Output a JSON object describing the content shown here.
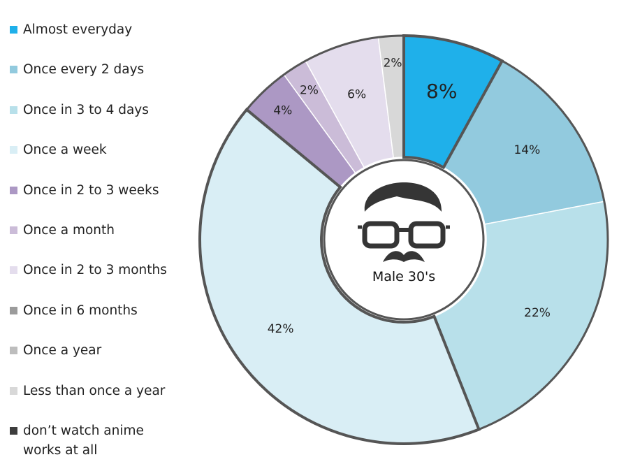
{
  "chart_data": {
    "type": "pie",
    "style": "donut",
    "center_label": "Male 30's",
    "center_icon": "man-with-glasses-and-mustache-icon",
    "legend_placement": "left",
    "categories": [
      "Almost everyday",
      "Once every 2 days",
      "Once in 3 to 4 days",
      "Once a week",
      "Once in 2 to 3 weeks",
      "Once a month",
      "Once in 2 to 3 months",
      "Once in 6 months",
      "Once a year",
      "Less than once a year",
      "don’t watch anime works at all"
    ],
    "values": [
      8,
      14,
      22,
      42,
      4,
      2,
      6,
      0,
      0,
      2,
      0
    ],
    "value_labels": [
      "8%",
      "14%",
      "22%",
      "42%",
      "4%",
      "2%",
      "6%",
      "",
      "",
      "2%",
      ""
    ],
    "colors": [
      "#1fb0ea",
      "#92cade",
      "#b8e0ea",
      "#d9eef5",
      "#ac98c4",
      "#cbbcd8",
      "#e4dded",
      "#9b9b9b",
      "#bdbdbd",
      "#d8d8d8",
      "#3d3d3d"
    ],
    "highlighted": "Almost everyday"
  }
}
